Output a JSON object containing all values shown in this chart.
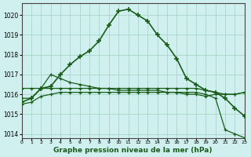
{
  "xlabel": "Graphe pression niveau de la mer (hPa)",
  "bg_color": "#cff0ee",
  "grid_color": "#a8d5c8",
  "line_color": "#1a5c1a",
  "ylim": [
    1013.8,
    1020.6
  ],
  "xlim": [
    0,
    23
  ],
  "yticks": [
    1014,
    1015,
    1016,
    1017,
    1018,
    1019,
    1020
  ],
  "xticks": [
    0,
    1,
    2,
    3,
    4,
    5,
    6,
    7,
    8,
    9,
    10,
    11,
    12,
    13,
    14,
    15,
    16,
    17,
    18,
    19,
    20,
    21,
    22,
    23
  ],
  "line1": [
    1015.6,
    1015.8,
    1016.3,
    1016.4,
    1017.0,
    1017.5,
    1017.9,
    1018.2,
    1018.7,
    1019.5,
    1020.2,
    1020.3,
    1020.0,
    1019.7,
    1019.0,
    1018.5,
    1017.8,
    1016.8,
    1016.5,
    1016.2,
    1016.1,
    1015.8,
    1015.3,
    1014.9
  ],
  "line2": [
    1016.3,
    1016.3,
    1016.3,
    1016.3,
    1016.3,
    1016.3,
    1016.3,
    1016.3,
    1016.3,
    1016.3,
    1016.3,
    1016.3,
    1016.3,
    1016.3,
    1016.3,
    1016.3,
    1016.3,
    1016.3,
    1016.3,
    1016.2,
    1016.1,
    1016.0,
    1016.0,
    1016.1
  ],
  "line3": [
    1015.5,
    1015.6,
    1015.9,
    1016.0,
    1016.1,
    1016.1,
    1016.1,
    1016.1,
    1016.1,
    1016.1,
    1016.1,
    1016.1,
    1016.1,
    1016.1,
    1016.1,
    1016.1,
    1016.1,
    1016.1,
    1016.1,
    1016.0,
    1015.8,
    1014.2,
    1014.0,
    1013.8
  ],
  "line4": [
    1015.8,
    1015.8,
    1016.3,
    1017.0,
    1016.8,
    1016.6,
    1016.5,
    1016.4,
    1016.3,
    1016.3,
    1016.2,
    1016.2,
    1016.2,
    1016.2,
    1016.2,
    1016.1,
    1016.1,
    1016.0,
    1016.0,
    1015.9,
    1016.0,
    1016.0,
    1016.0,
    1016.1
  ]
}
